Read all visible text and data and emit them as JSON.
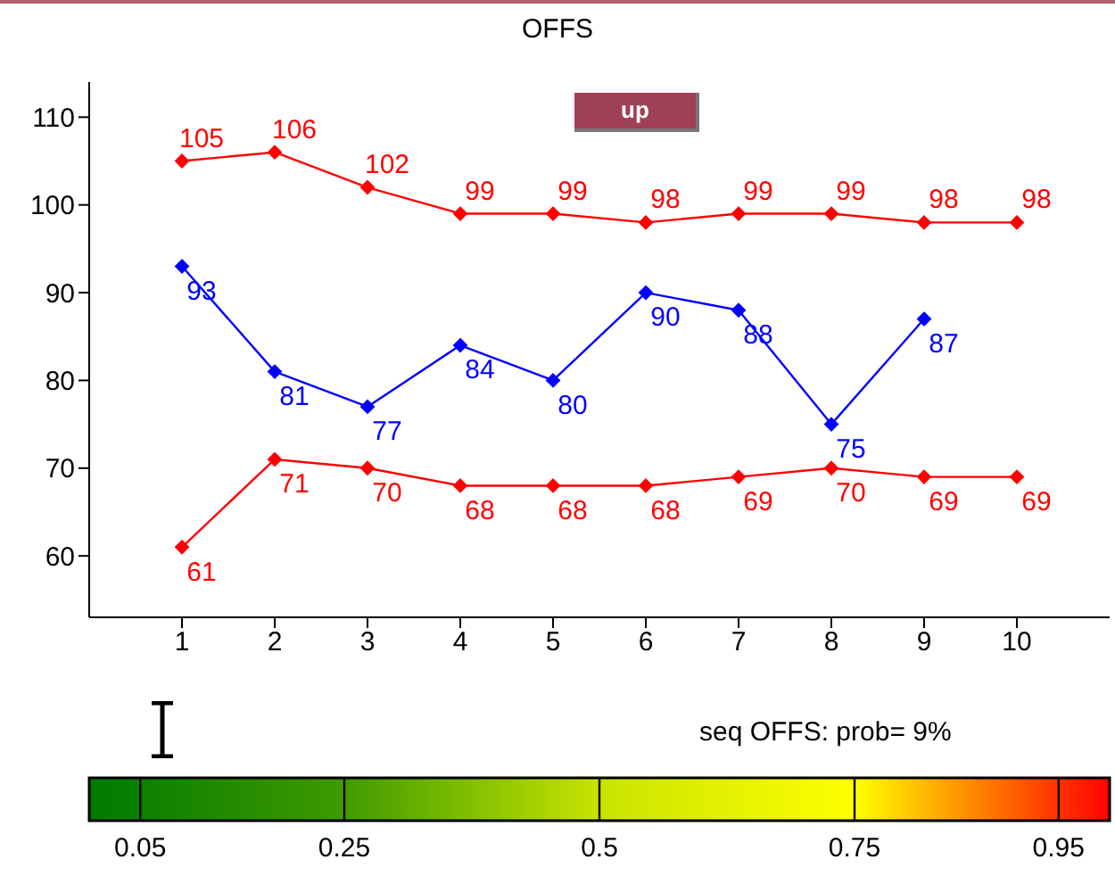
{
  "chart_data": {
    "type": "line",
    "title": "OFFS",
    "x": [
      1,
      2,
      3,
      4,
      5,
      6,
      7,
      8,
      9,
      10
    ],
    "series": [
      {
        "color": "#ff0000",
        "values": [
          105,
          106,
          102,
          99,
          99,
          98,
          99,
          99,
          98,
          98
        ]
      },
      {
        "color": "#0000ff",
        "values": [
          93,
          81,
          77,
          84,
          80,
          90,
          88,
          75,
          87,
          null
        ]
      },
      {
        "color": "#ff0000",
        "values": [
          61,
          71,
          70,
          68,
          68,
          68,
          69,
          70,
          69,
          69
        ]
      }
    ],
    "xlim": [
      0,
      11
    ],
    "xticks": [
      1,
      2,
      3,
      4,
      5,
      6,
      7,
      8,
      9,
      10
    ],
    "ylim": [
      53,
      114
    ],
    "yticks": [
      60,
      70,
      80,
      90,
      100,
      110
    ],
    "data_labels": true,
    "marker": "diamond",
    "line_style": "solid",
    "grid": false,
    "clim": [
      0,
      1
    ],
    "cticks": [
      0.05,
      0.25,
      0.5,
      0.75,
      0.95
    ],
    "annotations": [
      "up",
      "seq OFFS: prob= 9%"
    ]
  }
}
